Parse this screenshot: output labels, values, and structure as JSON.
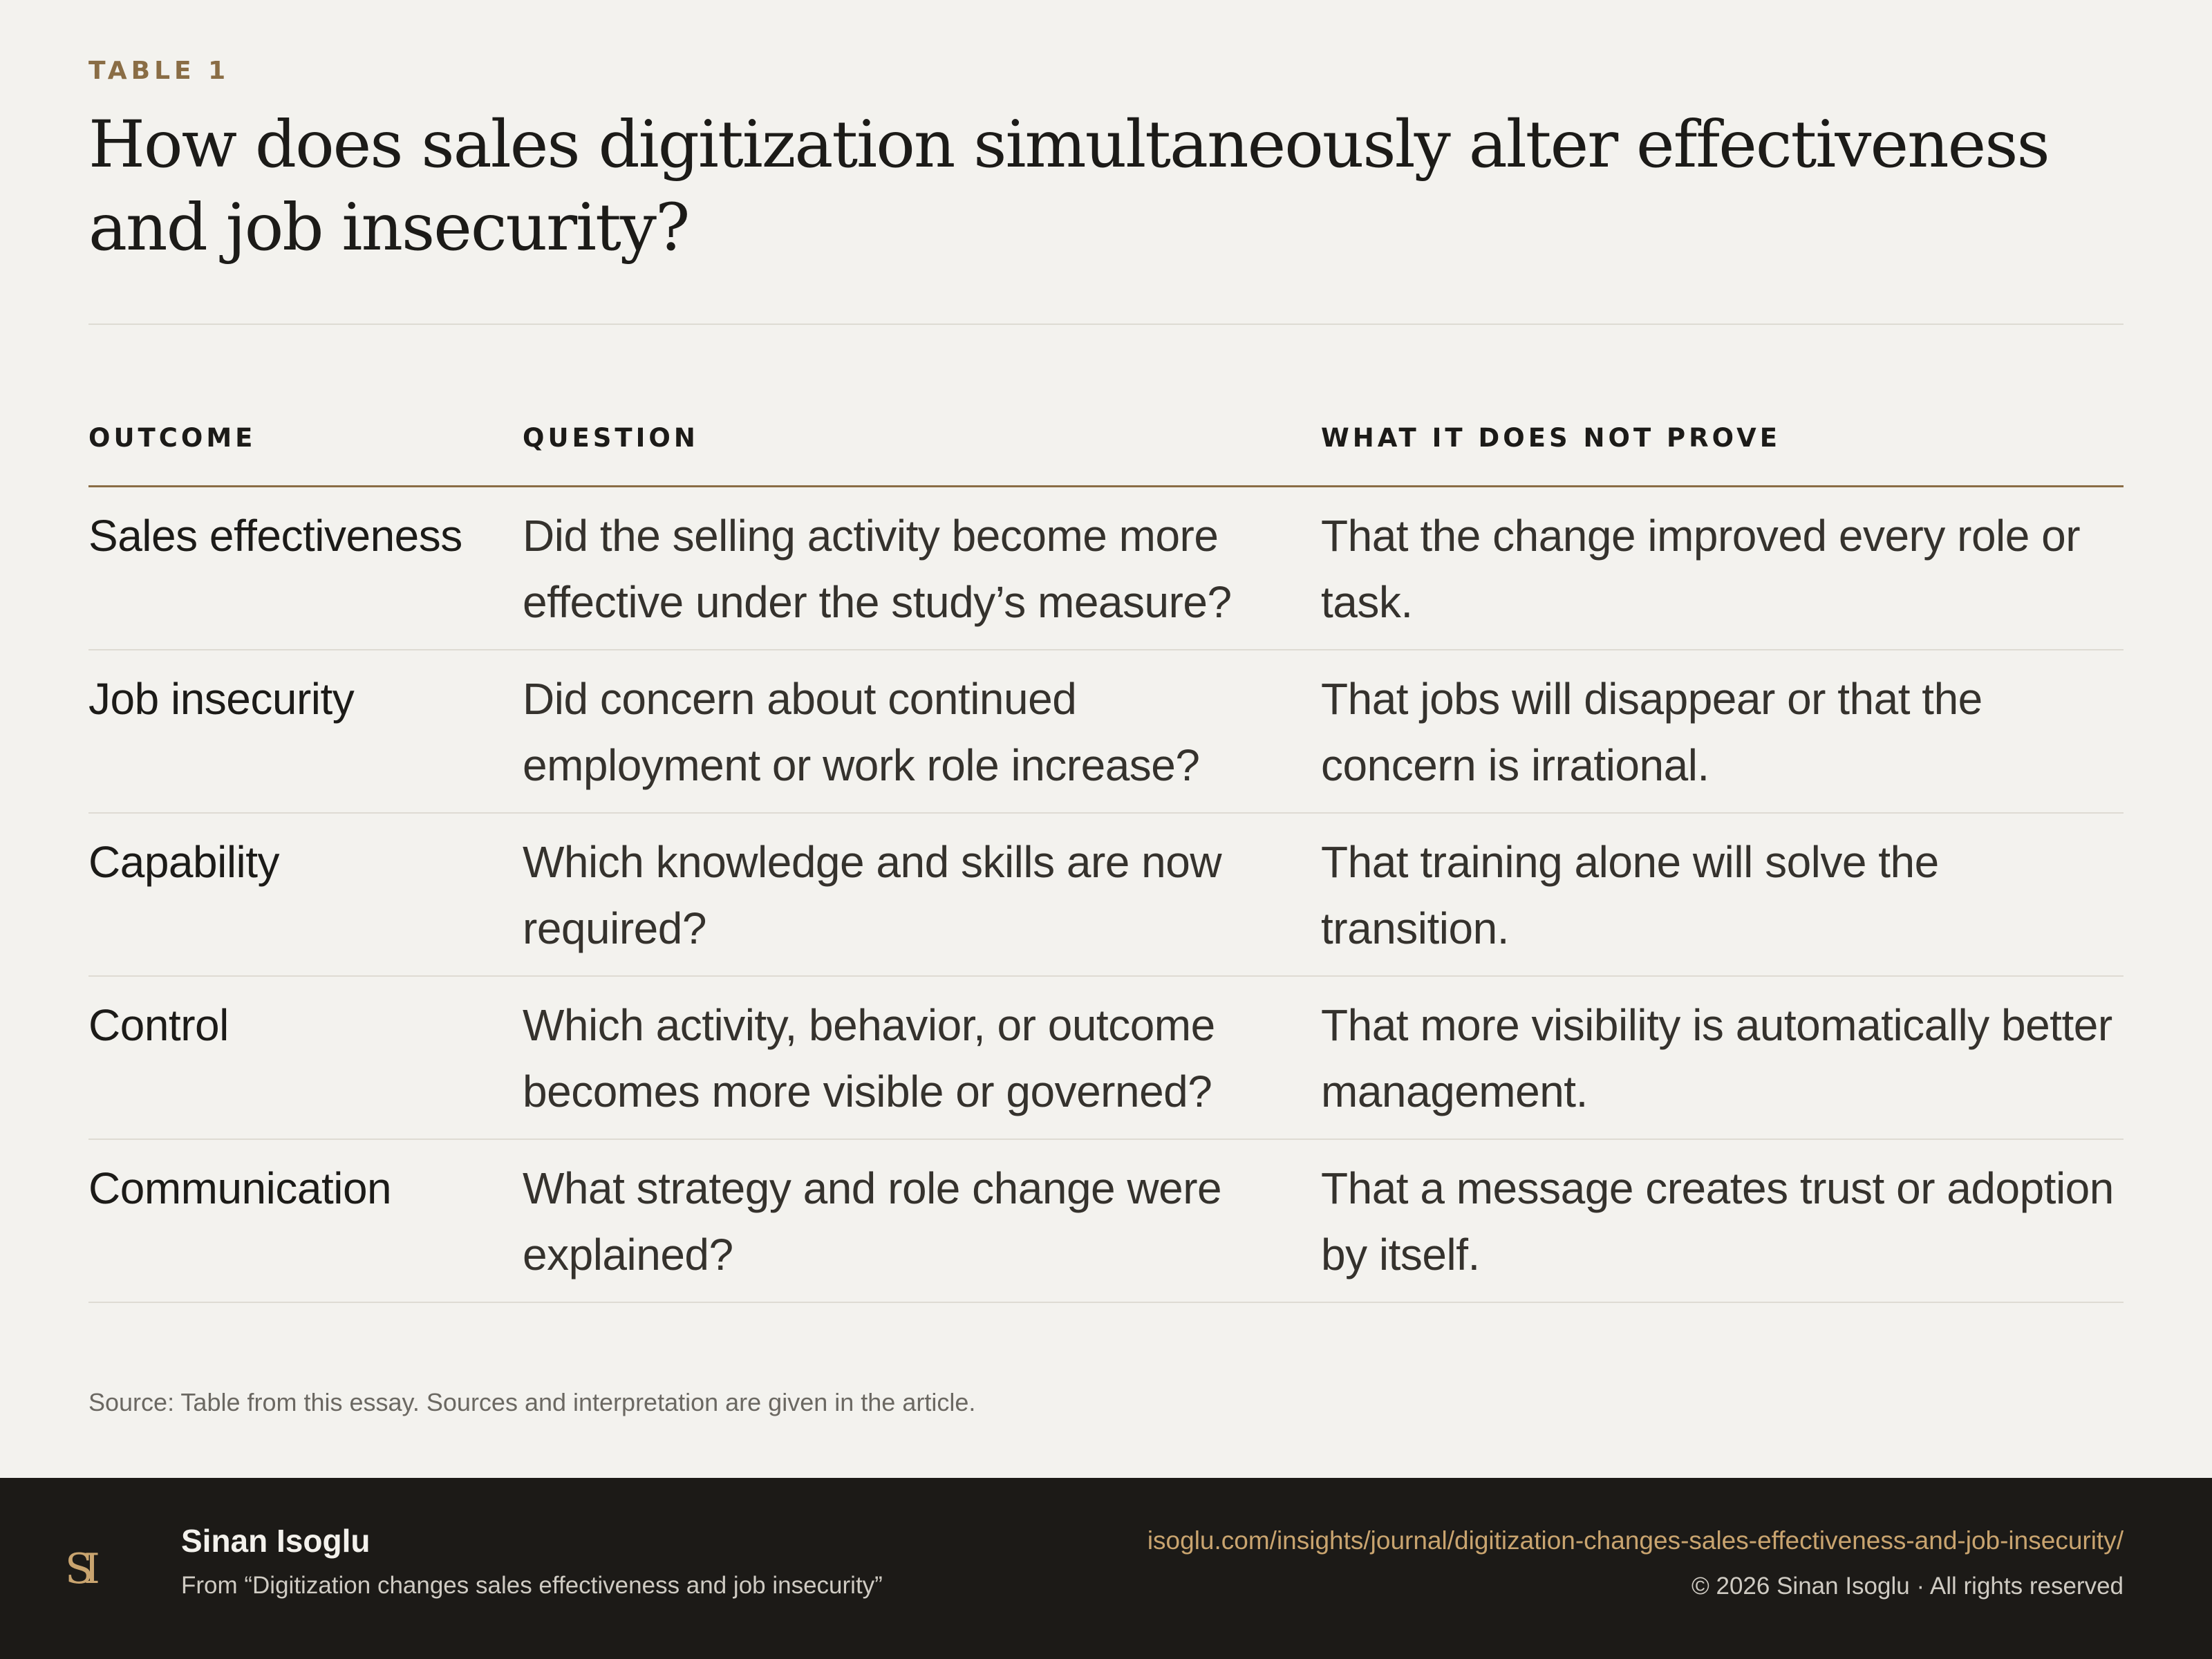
{
  "header": {
    "eyebrow": "TABLE 1",
    "title": "How does sales digitization simultaneously alter effectiveness and job insecurity?"
  },
  "table": {
    "columns": [
      "OUTCOME",
      "QUESTION",
      "WHAT IT DOES NOT PROVE"
    ],
    "rows": [
      {
        "outcome": "Sales effectiveness",
        "question": "Did the selling activity become more effective under the study’s measure?",
        "not_prove": "That the change improved every role or task."
      },
      {
        "outcome": "Job insecurity",
        "question": "Did concern about continued employment or work role increase?",
        "not_prove": "That jobs will disappear or that the concern is irrational."
      },
      {
        "outcome": "Capability",
        "question": "Which knowledge and skills are now required?",
        "not_prove": "That training alone will solve the transition."
      },
      {
        "outcome": "Control",
        "question": "Which activity, behavior, or outcome becomes more visible or governed?",
        "not_prove": "That more visibility is automatically better management."
      },
      {
        "outcome": "Communication",
        "question": "What strategy and role change were explained?",
        "not_prove": "That a message creates trust or adoption by itself."
      }
    ]
  },
  "source": "Source: Table from this essay. Sources and interpretation are given in the article.",
  "footer": {
    "logo_text": "SI",
    "author": "Sinan Isoglu",
    "from": "From “Digitization changes sales effectiveness and job insecurity”",
    "url": "isoglu.com/insights/journal/digitization-changes-sales-effectiveness-and-job-insecurity/",
    "copyright": "© 2026 Sinan Isoglu · All rights reserved"
  },
  "colors": {
    "background": "#f3f2ee",
    "accent": "#8a6d45",
    "footer_bg": "#1c1a17",
    "link": "#c9a46f"
  }
}
